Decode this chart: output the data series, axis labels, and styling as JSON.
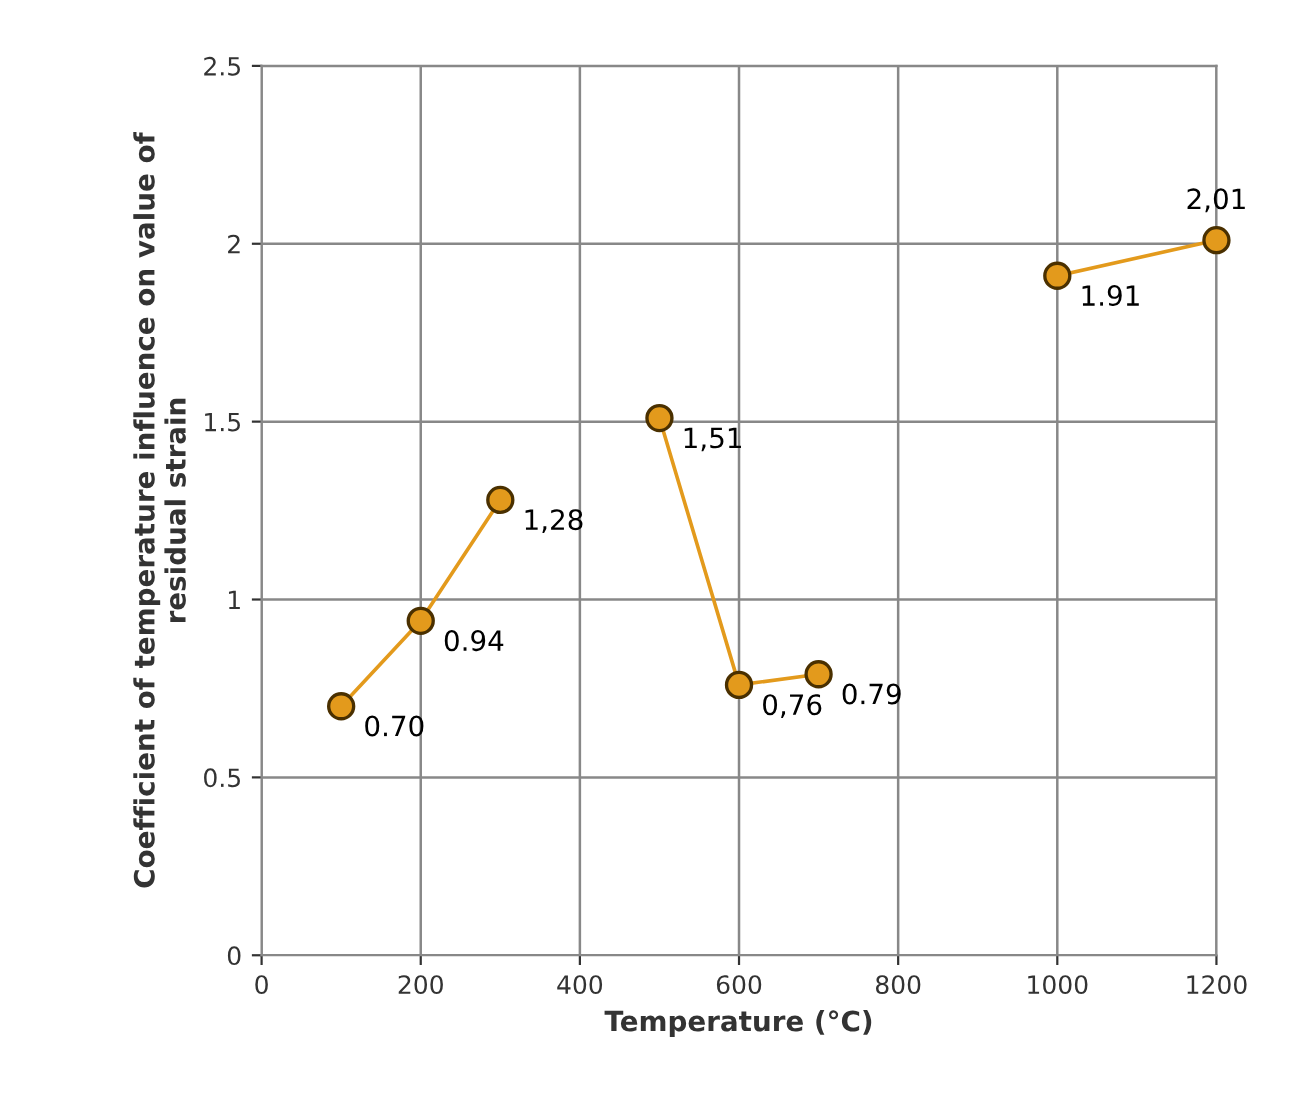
{
  "chart_data": {
    "type": "line",
    "xlabel": "Temperature (°C)",
    "ylabel": "Coefficient of temperature influence on value of\nresidual strain",
    "xlim": [
      0,
      1200
    ],
    "xticks": [
      0,
      200,
      400,
      600,
      800,
      1000,
      1200
    ],
    "ylim": [
      0,
      2.5
    ],
    "yticks": [
      0,
      0.5,
      1,
      1.5,
      2,
      2.5
    ],
    "grid": true,
    "marker": "circle",
    "line_style": "solid",
    "legend": false,
    "series": [
      {
        "color": "#e39a1c",
        "x": [
          100,
          200,
          300
        ],
        "values": [
          0.7,
          0.94,
          1.28
        ],
        "value_labels": [
          "0.70",
          "0.94",
          "1,28"
        ]
      },
      {
        "color": "#e39a1c",
        "x": [
          500,
          600,
          700
        ],
        "values": [
          1.51,
          0.76,
          0.79
        ],
        "value_labels": [
          "1,51",
          "0,76",
          "0.79"
        ]
      },
      {
        "color": "#e39a1c",
        "x": [
          1000,
          1200
        ],
        "values": [
          1.91,
          2.01
        ],
        "value_labels": [
          "1.91",
          "2,01"
        ]
      }
    ]
  }
}
